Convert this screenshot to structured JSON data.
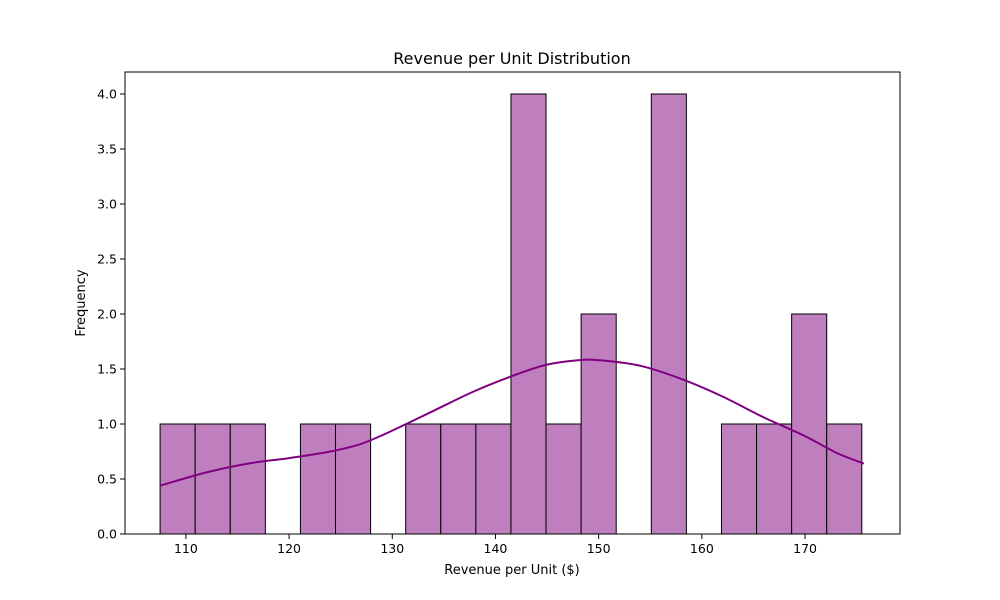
{
  "chart_data": {
    "type": "bar",
    "title": "Revenue per Unit Distribution",
    "xlabel": "Revenue per Unit ($)",
    "ylabel": "Frequency",
    "xlim": [
      104.1,
      179.2
    ],
    "ylim": [
      0,
      4.2
    ],
    "x_ticks": [
      110,
      120,
      130,
      140,
      150,
      160,
      170
    ],
    "y_ticks": [
      0.0,
      0.5,
      1.0,
      1.5,
      2.0,
      2.5,
      3.0,
      3.5,
      4.0
    ],
    "y_tick_labels": [
      "0.0",
      "0.5",
      "1.0",
      "1.5",
      "2.0",
      "2.5",
      "3.0",
      "3.5",
      "4.0"
    ],
    "grid": false,
    "bins": {
      "start": 107.5,
      "width": 3.4,
      "counts": [
        1,
        1,
        1,
        0,
        1,
        1,
        0,
        1,
        1,
        1,
        4,
        1,
        2,
        0,
        4,
        0,
        1,
        1,
        2,
        1
      ]
    },
    "kde": {
      "x": [
        107.5,
        112,
        116,
        120,
        124,
        127,
        130,
        134,
        138,
        142,
        145,
        148,
        150,
        154,
        158,
        162,
        166,
        170,
        173,
        175.7
      ],
      "y": [
        0.44,
        0.56,
        0.64,
        0.69,
        0.75,
        0.82,
        0.94,
        1.12,
        1.3,
        1.45,
        1.54,
        1.58,
        1.58,
        1.53,
        1.41,
        1.25,
        1.06,
        0.89,
        0.74,
        0.64
      ]
    },
    "colors": {
      "bar_fill": "#bf7fbf",
      "bar_edge": "#000000",
      "kde_line": "#800080"
    }
  }
}
